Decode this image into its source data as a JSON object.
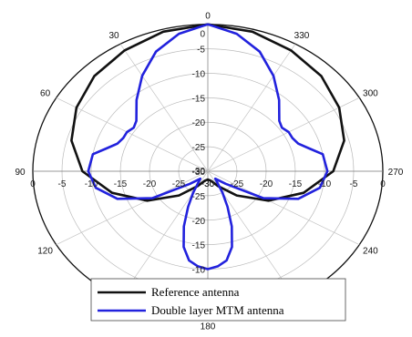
{
  "chart_data": {
    "type": "line",
    "subtype": "polar",
    "title": "",
    "radial_axis": {
      "unit_range": [
        -30,
        0
      ],
      "ticks_upper": [
        "0",
        "-5",
        "-10",
        "-15",
        "-20",
        "-25",
        "-30"
      ],
      "ticks_lower": [
        "-30",
        "-25",
        "-20",
        "-15",
        "-10"
      ],
      "ticks_left": [
        "0",
        "-5",
        "-10",
        "-15",
        "-20",
        "-25",
        "-30"
      ],
      "ticks_right": [
        "-30",
        "-25",
        "-20",
        "-15",
        "-10",
        "-5",
        "0"
      ]
    },
    "angle_labels": [
      {
        "angle": 0,
        "label": "0"
      },
      {
        "angle": 30,
        "label": "30"
      },
      {
        "angle": 60,
        "label": "60"
      },
      {
        "angle": 90,
        "label": "90"
      },
      {
        "angle": 120,
        "label": "120"
      },
      {
        "angle": 180,
        "label": "180"
      },
      {
        "angle": 240,
        "label": "240"
      },
      {
        "angle": 270,
        "label": "270"
      },
      {
        "angle": 300,
        "label": "300"
      },
      {
        "angle": 330,
        "label": "330"
      }
    ],
    "grid": true,
    "legend": {
      "placement": "bottom-center"
    },
    "series": [
      {
        "name": "Reference antenna",
        "color": "#111111",
        "points": [
          [
            0,
            0
          ],
          [
            15,
            -0.5
          ],
          [
            30,
            -1.5
          ],
          [
            45,
            -2.5
          ],
          [
            60,
            -4
          ],
          [
            75,
            -5.8
          ],
          [
            90,
            -8.5
          ],
          [
            105,
            -13
          ],
          [
            120,
            -18
          ],
          [
            135,
            -23
          ],
          [
            150,
            -26.5
          ],
          [
            165,
            -28
          ],
          [
            180,
            -28.3
          ],
          [
            195,
            -28
          ],
          [
            210,
            -26.5
          ],
          [
            225,
            -23
          ],
          [
            240,
            -18
          ],
          [
            255,
            -13
          ],
          [
            270,
            -8.5
          ],
          [
            285,
            -5.8
          ],
          [
            300,
            -4
          ],
          [
            315,
            -2.5
          ],
          [
            330,
            -1.5
          ],
          [
            345,
            -0.5
          ],
          [
            360,
            0
          ]
        ]
      },
      {
        "name": "Double layer MTM antenna",
        "color": "#2222dd",
        "points": [
          [
            0,
            0
          ],
          [
            10,
            -1.5
          ],
          [
            20,
            -4
          ],
          [
            30,
            -7.5
          ],
          [
            40,
            -11
          ],
          [
            50,
            -14
          ],
          [
            55,
            -14.5
          ],
          [
            60,
            -14
          ],
          [
            65,
            -14
          ],
          [
            70,
            -13.5
          ],
          [
            75,
            -12
          ],
          [
            80,
            -10
          ],
          [
            90,
            -9.5
          ],
          [
            100,
            -10.5
          ],
          [
            110,
            -13.5
          ],
          [
            120,
            -19
          ],
          [
            130,
            -26
          ],
          [
            140,
            -28
          ],
          [
            150,
            -25
          ],
          [
            155,
            -22
          ],
          [
            160,
            -18
          ],
          [
            165,
            -14
          ],
          [
            170,
            -11.5
          ],
          [
            175,
            -10.5
          ],
          [
            180,
            -10
          ],
          [
            185,
            -10.5
          ],
          [
            190,
            -11.5
          ],
          [
            195,
            -14
          ],
          [
            200,
            -18
          ],
          [
            205,
            -22
          ],
          [
            210,
            -25
          ],
          [
            220,
            -28
          ],
          [
            230,
            -26
          ],
          [
            240,
            -19
          ],
          [
            250,
            -13.5
          ],
          [
            260,
            -10.5
          ],
          [
            270,
            -9.5
          ],
          [
            280,
            -10
          ],
          [
            285,
            -12
          ],
          [
            290,
            -13.5
          ],
          [
            295,
            -14
          ],
          [
            300,
            -14
          ],
          [
            305,
            -14.5
          ],
          [
            310,
            -14
          ],
          [
            320,
            -11
          ],
          [
            330,
            -7.5
          ],
          [
            340,
            -4
          ],
          [
            350,
            -1.5
          ],
          [
            360,
            0
          ]
        ]
      }
    ]
  }
}
